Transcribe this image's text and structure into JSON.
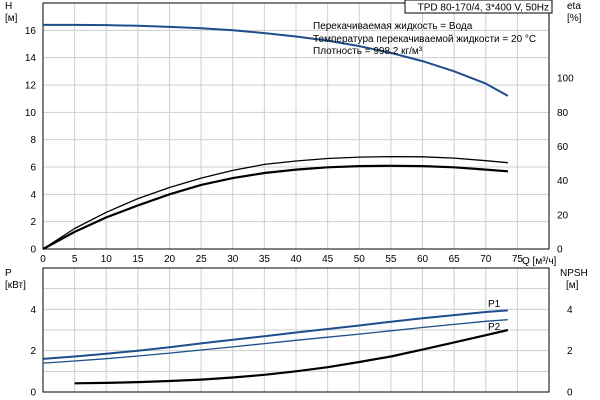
{
  "chart_data": [
    {
      "type": "line",
      "title": "TPD 80-170/4, 3*400 V, 50Hz",
      "annotations": [
        "Перекачиваемая жидкость = Вода",
        "Температура перекачиваемой жидкости = 20 °C",
        "Плотность = 998.2 кг/м³"
      ],
      "xlabel": "Q [м³/ч]",
      "ylabel_left_name": "H",
      "ylabel_left_unit": "[м]",
      "ylabel_right_name": "eta",
      "ylabel_right_unit": "[%]",
      "xlim": [
        0,
        80
      ],
      "ylim_left": [
        0,
        18
      ],
      "ylim_right": [
        0,
        144
      ],
      "x_ticks": [
        "0",
        "5",
        "10",
        "15",
        "20",
        "25",
        "30",
        "35",
        "40",
        "45",
        "50",
        "55",
        "60",
        "65",
        "70",
        "75"
      ],
      "y_left_ticks": [
        "0",
        "2",
        "4",
        "6",
        "8",
        "10",
        "12",
        "14",
        "16"
      ],
      "y_right_ticks": [
        "0",
        "20",
        "40",
        "60",
        "80",
        "100"
      ],
      "grid": true,
      "series": [
        {
          "axis": "left",
          "color": "#1f4e8c",
          "x": [
            0,
            5,
            10,
            15,
            20,
            25,
            30,
            35,
            40,
            45,
            50,
            55,
            60,
            65,
            70,
            73.5
          ],
          "values": [
            16.4,
            16.4,
            16.38,
            16.33,
            16.25,
            16.15,
            16.0,
            15.8,
            15.55,
            15.25,
            14.85,
            14.35,
            13.75,
            13.0,
            12.1,
            11.2
          ]
        },
        {
          "axis": "right",
          "color": "#000000",
          "x": [
            0,
            5,
            10,
            15,
            20,
            25,
            30,
            35,
            40,
            45,
            50,
            55,
            60,
            65,
            70,
            73.5
          ],
          "values": [
            0,
            12,
            21.5,
            29.5,
            36,
            41.5,
            46,
            49.5,
            51.5,
            53,
            53.8,
            54.1,
            54,
            53.2,
            51.7,
            50.5
          ]
        },
        {
          "axis": "right",
          "color": "#000000",
          "x": [
            0,
            5,
            10,
            15,
            20,
            25,
            30,
            35,
            40,
            45,
            50,
            55,
            60,
            65,
            70,
            73.5
          ],
          "values": [
            0,
            10,
            18.5,
            25.5,
            32,
            37.5,
            41.5,
            44.5,
            46.5,
            47.8,
            48.5,
            48.7,
            48.5,
            47.8,
            46.5,
            45.5
          ]
        }
      ]
    },
    {
      "type": "line",
      "ylabel_left_name": "P",
      "ylabel_left_unit": "[кВт]",
      "ylabel_right_name": "NPSH",
      "ylabel_right_unit": "[м]",
      "xlim": [
        0,
        80
      ],
      "ylim_left": [
        0,
        6
      ],
      "ylim_right": [
        0,
        6
      ],
      "y_left_ticks": [
        "0",
        "2",
        "4"
      ],
      "y_right_ticks": [
        "0",
        "2",
        "4"
      ],
      "grid": true,
      "series": [
        {
          "name": "P1",
          "axis": "left",
          "color": "#1f4e8c",
          "x": [
            0,
            5,
            10,
            15,
            20,
            25,
            30,
            35,
            40,
            45,
            50,
            55,
            60,
            65,
            70,
            73.5
          ],
          "values": [
            1.6,
            1.72,
            1.85,
            2.0,
            2.17,
            2.35,
            2.53,
            2.7,
            2.88,
            3.05,
            3.22,
            3.4,
            3.57,
            3.72,
            3.87,
            3.95
          ]
        },
        {
          "name": "P2",
          "axis": "left",
          "color": "#1f4e8c",
          "x": [
            0,
            5,
            10,
            15,
            20,
            25,
            30,
            35,
            40,
            45,
            50,
            55,
            60,
            65,
            70,
            73.5
          ],
          "values": [
            1.4,
            1.5,
            1.61,
            1.74,
            1.88,
            2.03,
            2.18,
            2.34,
            2.5,
            2.65,
            2.8,
            2.96,
            3.12,
            3.27,
            3.42,
            3.5
          ]
        },
        {
          "axis": "right",
          "color": "#000000",
          "x": [
            5,
            10,
            15,
            20,
            25,
            30,
            35,
            40,
            45,
            50,
            55,
            60,
            65,
            70,
            73.5
          ],
          "values": [
            0.42,
            0.44,
            0.48,
            0.53,
            0.6,
            0.7,
            0.83,
            1.0,
            1.2,
            1.45,
            1.72,
            2.05,
            2.4,
            2.75,
            3.0
          ]
        }
      ]
    }
  ]
}
